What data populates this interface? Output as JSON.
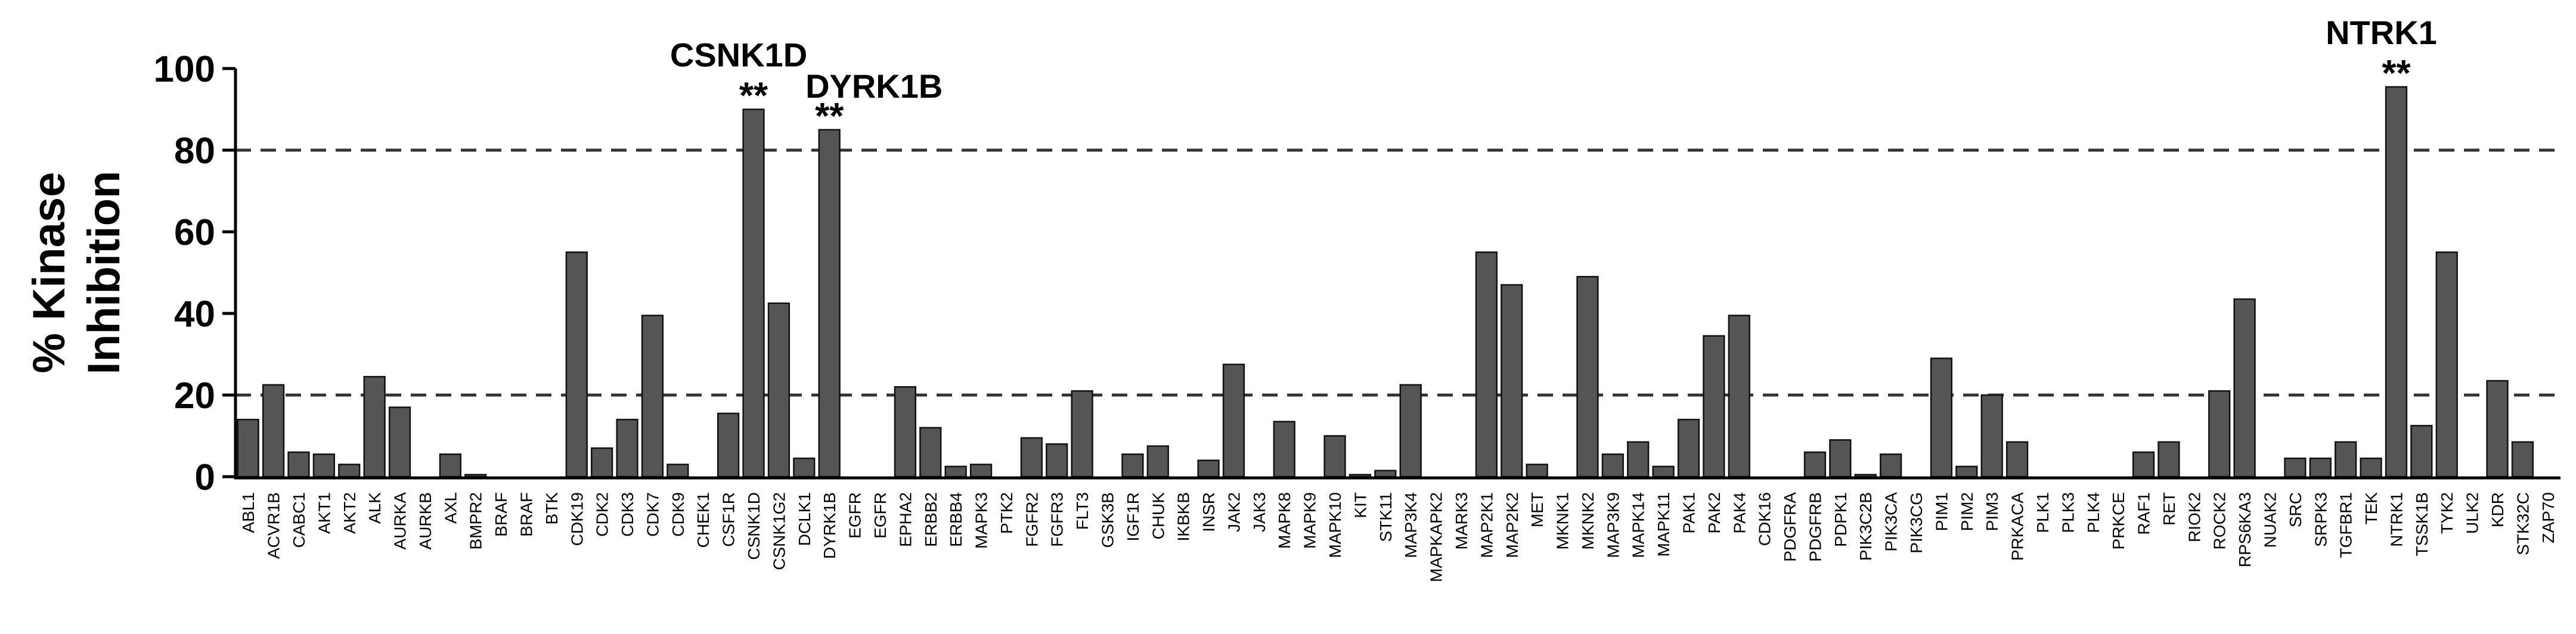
{
  "chart_data": {
    "type": "bar",
    "title": "",
    "ylabel_lines": [
      "% Kinase",
      "Inhibition"
    ],
    "xlabel": "",
    "ylim": [
      0,
      100
    ],
    "yticks": [
      "0",
      "20",
      "40",
      "60",
      "80",
      "100"
    ],
    "reference_lines": [
      20,
      80
    ],
    "bar_color": "#555555",
    "categories": [
      "ABL1",
      "ACVR1B",
      "CABC1",
      "AKT1",
      "AKT2",
      "ALK",
      "AURKA",
      "AURKB",
      "AXL",
      "BMPR2",
      "BRAF",
      "BRAF",
      "BTK",
      "CDK19",
      "CDK2",
      "CDK3",
      "CDK7",
      "CDK9",
      "CHEK1",
      "CSF1R",
      "CSNK1D",
      "CSNK1G2",
      "DCLK1",
      "DYRK1B",
      "EGFR",
      "EGFR",
      "EPHA2",
      "ERBB2",
      "ERBB4",
      "MAPK3",
      "PTK2",
      "FGFR2",
      "FGFR3",
      "FLT3",
      "GSK3B",
      "IGF1R",
      "CHUK",
      "IKBKB",
      "INSR",
      "JAK2",
      "JAK3",
      "MAPK8",
      "MAPK9",
      "MAPK10",
      "KIT",
      "STK11",
      "MAP3K4",
      "MAPKAPK2",
      "MARK3",
      "MAP2K1",
      "MAP2K2",
      "MET",
      "MKNK1",
      "MKNK2",
      "MAP3K9",
      "MAPK14",
      "MAPK11",
      "PAK1",
      "PAK2",
      "PAK4",
      "CDK16",
      "PDGFRA",
      "PDGFRB",
      "PDPK1",
      "PIK3C2B",
      "PIK3CA",
      "PIK3CG",
      "PIM1",
      "PIM2",
      "PIM3",
      "PRKACA",
      "PLK1",
      "PLK3",
      "PLK4",
      "PRKCE",
      "RAF1",
      "RET",
      "RIOK2",
      "ROCK2",
      "RPS6KA3",
      "NUAK2",
      "SRC",
      "SRPK3",
      "TGFBR1",
      "TEK",
      "NTRK1",
      "TSSK1B",
      "TYK2",
      "ULK2",
      "KDR",
      "STK32C",
      "ZAP70"
    ],
    "values": [
      14,
      22.5,
      6,
      5.5,
      3,
      24.5,
      17,
      0,
      5.5,
      0.5,
      0,
      0,
      0,
      55,
      7,
      14,
      39.5,
      3,
      0,
      15.5,
      90,
      42.5,
      4.5,
      85,
      0,
      0,
      22,
      12,
      2.5,
      3,
      0,
      9.5,
      8,
      21,
      0,
      5.5,
      7.5,
      0,
      4,
      27.5,
      0,
      13.5,
      0,
      10,
      0.5,
      1.5,
      22.5,
      0,
      0,
      55,
      47,
      3,
      0,
      49,
      5.5,
      8.5,
      2.5,
      14,
      34.5,
      39.5,
      0,
      0,
      6,
      9,
      0.5,
      5.5,
      0,
      29,
      2.5,
      20,
      8.5,
      0,
      0,
      0,
      0,
      6,
      8.5,
      0,
      21,
      43.5,
      0,
      4.5,
      4.5,
      8.5,
      4.5,
      95.5,
      12.5,
      55,
      0,
      23.5,
      8.5,
      0
    ],
    "annotations": [
      {
        "category_index": 20,
        "label": "CSNK1D",
        "mark": "**"
      },
      {
        "category_index": 23,
        "label": "DYRK1B",
        "mark": "**"
      },
      {
        "category_index": 85,
        "label": "NTRK1",
        "mark": "**"
      }
    ]
  }
}
